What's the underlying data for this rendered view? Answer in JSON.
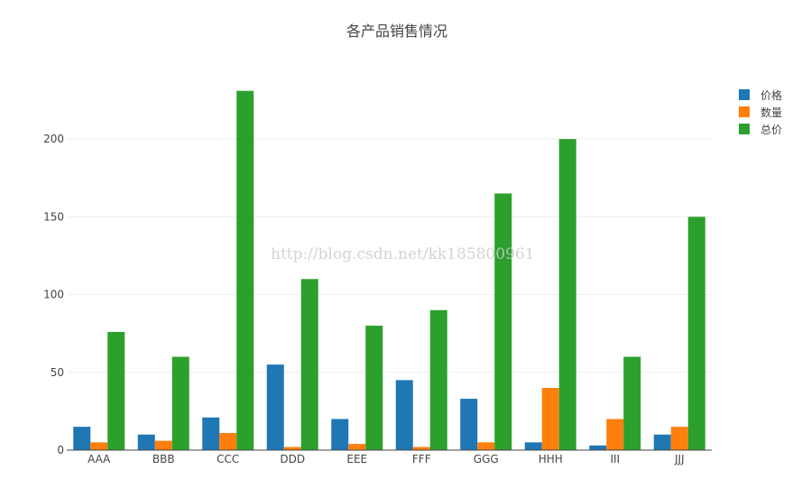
{
  "chart_data": {
    "type": "bar",
    "title": "各产品销售情况",
    "xlabel": "",
    "ylabel": "",
    "categories": [
      "AAA",
      "BBB",
      "CCC",
      "DDD",
      "EEE",
      "FFF",
      "GGG",
      "HHH",
      "III",
      "JJJ"
    ],
    "series": [
      {
        "name": "价格",
        "color": "#1f77b4",
        "values": [
          15,
          10,
          21,
          55,
          20,
          45,
          33,
          5,
          3,
          10
        ]
      },
      {
        "name": "数量",
        "color": "#ff7f0e",
        "values": [
          5,
          6,
          11,
          2,
          4,
          2,
          5,
          40,
          20,
          15
        ]
      },
      {
        "name": "总价",
        "color": "#2ca02c",
        "values": [
          76,
          60,
          231,
          110,
          80,
          90,
          165,
          200,
          60,
          150
        ]
      }
    ],
    "yticks": [
      0,
      50,
      100,
      150,
      200
    ],
    "ylim": [
      0,
      243
    ],
    "grid": true,
    "legend_position": "top-right"
  },
  "watermark": "http://blog.csdn.net/kk185800961"
}
